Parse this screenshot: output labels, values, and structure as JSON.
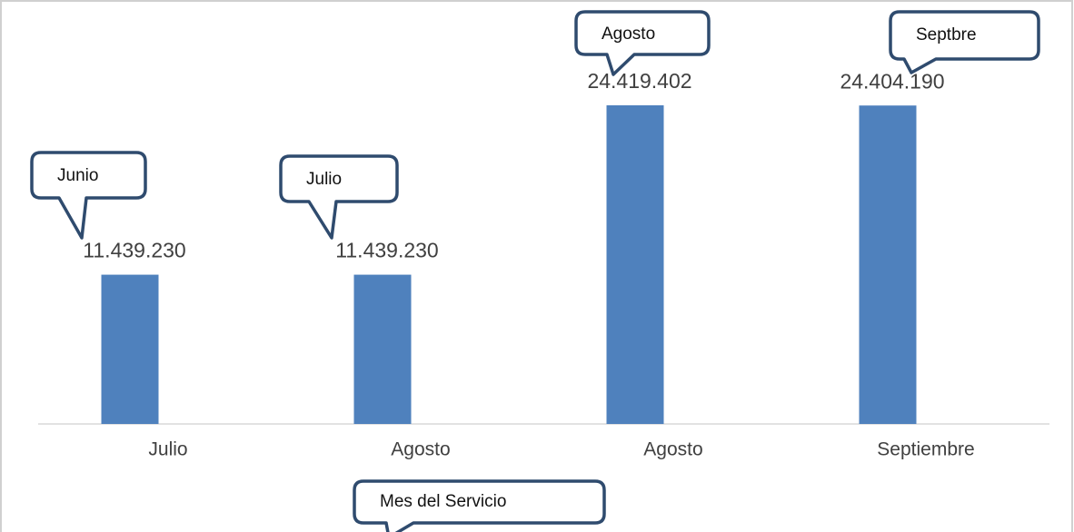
{
  "chart_data": {
    "type": "bar",
    "categories": [
      "Julio",
      "Agosto",
      "Agosto",
      "Septiembre"
    ],
    "values": [
      11439230,
      11439230,
      24419402,
      24404190
    ],
    "value_labels": [
      "11.439.230",
      "11.439.230",
      "24.419.402",
      "24.404.190"
    ],
    "color": "#4f81bd",
    "annotations": [
      "Junio",
      "Julio",
      "Agosto",
      "Septbre",
      "Mes del Servicio"
    ]
  }
}
